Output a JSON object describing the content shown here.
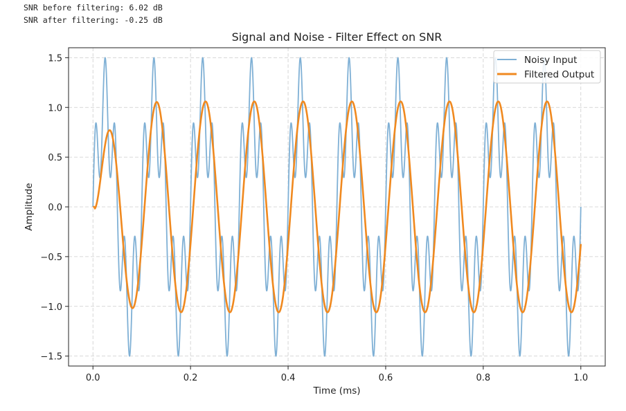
{
  "annotations": {
    "snr_before": "SNR before filtering: 6.02 dB",
    "snr_after": "SNR after filtering: -0.25 dB"
  },
  "chart_data": {
    "type": "line",
    "title": "Signal and Noise - Filter Effect on SNR",
    "xlabel": "Time (ms)",
    "ylabel": "Amplitude",
    "xlim": [
      -0.05,
      1.05
    ],
    "ylim": [
      -1.6,
      1.6
    ],
    "xticks": [
      0.0,
      0.2,
      0.4,
      0.6,
      0.8,
      1.0
    ],
    "xtick_labels": [
      "0.0",
      "0.2",
      "0.4",
      "0.6",
      "0.8",
      "1.0"
    ],
    "yticks": [
      -1.5,
      -1.0,
      -0.5,
      0.0,
      0.5,
      1.0,
      1.5
    ],
    "ytick_labels": [
      "−1.5",
      "−1.0",
      "−0.5",
      "0.0",
      "0.5",
      "1.0",
      "1.5"
    ],
    "grid": true,
    "legend_position": "top-right",
    "signal_frequency_cycles": 10,
    "noise_frequency_cycles": 50,
    "series": [
      {
        "name": "Noisy Input",
        "color": "#7fb0d5",
        "components": [
          {
            "amplitude": 1.0,
            "cycles": 10
          },
          {
            "amplitude": 0.5,
            "cycles": 50
          }
        ]
      },
      {
        "name": "Filtered Output",
        "color": "#f0891f",
        "amplitude": 1.06,
        "cycles": 10,
        "phase_lag": 0.36
      }
    ]
  }
}
